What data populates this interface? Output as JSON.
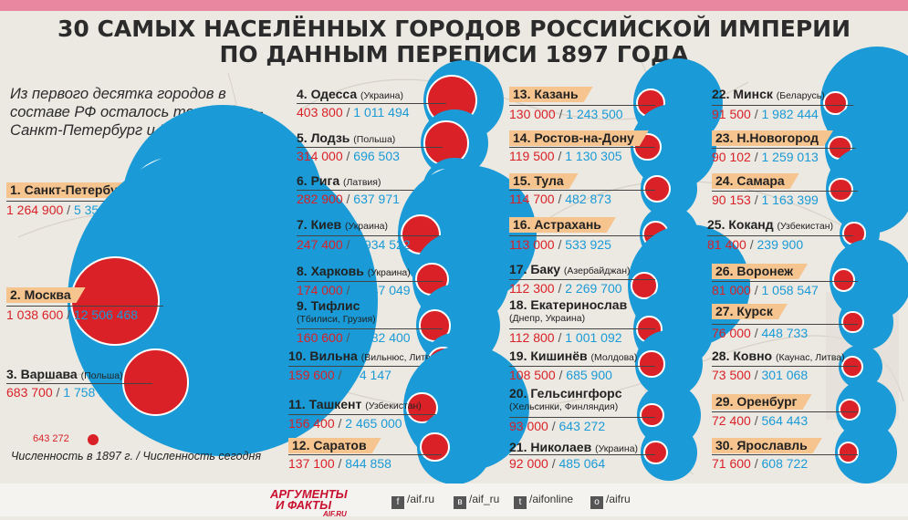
{
  "title_line1": "30 САМЫХ НАСЕЛЁННЫХ ГОРОДОВ РОССИЙСКОЙ ИМПЕРИИ",
  "title_line2": "ПО ДАННЫМ ПЕРЕПИСИ 1897 ГОДА",
  "intro": "Из первого десятка городов в составе РФ осталось только два - Санкт-Петербург и Москва.",
  "colors": {
    "accent_1897": "#d92127",
    "accent_now": "#1a9ad6",
    "label_highlight": "#f6c48f",
    "top_bar": "#e8879f"
  },
  "cities": [
    {
      "rank": "1.",
      "name": "Санкт-Петербург",
      "sub": "",
      "p1897": "1 264 900",
      "pnow": "5 351 935",
      "v1897": 1264900,
      "vnow": 5351935,
      "highlight": true
    },
    {
      "rank": "2.",
      "name": "Москва",
      "sub": "",
      "p1897": "1 038 600",
      "pnow": "12 506 468",
      "v1897": 1038600,
      "vnow": 12506468,
      "highlight": true
    },
    {
      "rank": "3.",
      "name": "Варшава",
      "sub": "(Польша)",
      "p1897": "683 700",
      "pnow": "1 758 143",
      "v1897": 683700,
      "vnow": 1758143,
      "highlight": false
    },
    {
      "rank": "4.",
      "name": "Одесса",
      "sub": "(Украина)",
      "p1897": "403 800",
      "pnow": "1 011 494",
      "v1897": 403800,
      "vnow": 1011494,
      "highlight": false
    },
    {
      "rank": "5.",
      "name": "Лодзь",
      "sub": "(Польша)",
      "p1897": "314 000",
      "pnow": "696 503",
      "v1897": 314000,
      "vnow": 696503,
      "highlight": false
    },
    {
      "rank": "6.",
      "name": "Рига",
      "sub": "(Латвия)",
      "p1897": "282 900",
      "pnow": "637 971",
      "v1897": 282900,
      "vnow": 637971,
      "highlight": false
    },
    {
      "rank": "7.",
      "name": "Киев",
      "sub": "(Украина)",
      "p1897": "247 400",
      "pnow": "2 934 522",
      "v1897": 247400,
      "vnow": 2934522,
      "highlight": false
    },
    {
      "rank": "8.",
      "name": "Харковь",
      "sub": "(Украина)",
      "p1897": "174 000",
      "pnow": "1 447 049",
      "v1897": 174000,
      "vnow": 1447049,
      "highlight": false
    },
    {
      "rank": "9.",
      "name": "Тифлис",
      "sub": "",
      "sub2": "(Тбилиси, Грузия)",
      "p1897": "160 600",
      "pnow": "1 082 400",
      "v1897": 160600,
      "vnow": 1082400,
      "highlight": false
    },
    {
      "rank": "10.",
      "name": "Вильна",
      "sub": "(Вильнюс, Литва)",
      "p1897": "159 600",
      "pnow": "574 147",
      "v1897": 159600,
      "vnow": 574147,
      "highlight": false
    },
    {
      "rank": "11.",
      "name": "Ташкент",
      "sub": "(Узбекистан)",
      "p1897": "156 400",
      "pnow": "2 465 000",
      "v1897": 156400,
      "vnow": 2465000,
      "highlight": false
    },
    {
      "rank": "12.",
      "name": "Саратов",
      "sub": "",
      "p1897": "137 100",
      "pnow": "844 858",
      "v1897": 137100,
      "vnow": 844858,
      "highlight": true
    },
    {
      "rank": "13.",
      "name": "Казань",
      "sub": "",
      "p1897": "130 000",
      "pnow": "1 243 500",
      "v1897": 130000,
      "vnow": 1243500,
      "highlight": true
    },
    {
      "rank": "14.",
      "name": "Ростов-на-Дону",
      "sub": "",
      "p1897": "119 500",
      "pnow": "1 130 305",
      "v1897": 119500,
      "vnow": 1130305,
      "highlight": true
    },
    {
      "rank": "15.",
      "name": "Тула",
      "sub": "",
      "p1897": "114 700",
      "pnow": "482 873",
      "v1897": 114700,
      "vnow": 482873,
      "highlight": true
    },
    {
      "rank": "16.",
      "name": "Астрахань",
      "sub": "",
      "p1897": "113 000",
      "pnow": "533 925",
      "v1897": 113000,
      "vnow": 533925,
      "highlight": true
    },
    {
      "rank": "17.",
      "name": "Баку",
      "sub": "(Азербайджан)",
      "p1897": "112 300",
      "pnow": "2 269 700",
      "v1897": 112300,
      "vnow": 2269700,
      "highlight": false
    },
    {
      "rank": "18.",
      "name": "Екатеринослав",
      "sub": "",
      "sub2": "(Днепр, Украина)",
      "p1897": "112 800",
      "pnow": "1 001 092",
      "v1897": 112800,
      "vnow": 1001092,
      "highlight": false
    },
    {
      "rank": "19.",
      "name": "Кишинёв",
      "sub": "(Молдова)",
      "p1897": "108 500",
      "pnow": "685 900",
      "v1897": 108500,
      "vnow": 685900,
      "highlight": false
    },
    {
      "rank": "20.",
      "name": "Гельсингфорс",
      "sub": "",
      "sub2": "(Хельсинки, Финляндия)",
      "p1897": "93 000",
      "pnow": "643 272",
      "v1897": 93000,
      "vnow": 643272,
      "highlight": false
    },
    {
      "rank": "21.",
      "name": "Николаев",
      "sub": "(Украина)",
      "p1897": "92 000",
      "pnow": "485 064",
      "v1897": 92000,
      "vnow": 485064,
      "highlight": false
    },
    {
      "rank": "22.",
      "name": "Минск",
      "sub": "(Беларусь)",
      "p1897": "91 500",
      "pnow": "1 982 444",
      "v1897": 91500,
      "vnow": 1982444,
      "highlight": false
    },
    {
      "rank": "23.",
      "name": "Н.Новогород",
      "sub": "",
      "p1897": "90 102",
      "pnow": "1 259 013",
      "v1897": 90102,
      "vnow": 1259013,
      "highlight": true
    },
    {
      "rank": "24.",
      "name": "Самара",
      "sub": "",
      "p1897": "90 153",
      "pnow": "1 163 399",
      "v1897": 90153,
      "vnow": 1163399,
      "highlight": true
    },
    {
      "rank": "25.",
      "name": "Коканд",
      "sub": "(Узбекистан)",
      "p1897": "81 400",
      "pnow": "239 900",
      "v1897": 81400,
      "vnow": 239900,
      "highlight": false
    },
    {
      "rank": "26.",
      "name": "Воронеж",
      "sub": "",
      "p1897": "81 000",
      "pnow": "1 058 547",
      "v1897": 81000,
      "vnow": 1058547,
      "highlight": true
    },
    {
      "rank": "27.",
      "name": "Курск",
      "sub": "",
      "p1897": "76 000",
      "pnow": "448 733",
      "v1897": 76000,
      "vnow": 448733,
      "highlight": true
    },
    {
      "rank": "28.",
      "name": "Ковно",
      "sub": "(Каунас, Литва)",
      "p1897": "73 500",
      "pnow": "301 068",
      "v1897": 73500,
      "vnow": 301068,
      "highlight": false
    },
    {
      "rank": "29.",
      "name": "Оренбург",
      "sub": "",
      "p1897": "72 400",
      "pnow": "564 443",
      "v1897": 72400,
      "vnow": 564443,
      "highlight": true
    },
    {
      "rank": "30.",
      "name": "Ярославль",
      "sub": "",
      "p1897": "71 600",
      "pnow": "608 722",
      "v1897": 71600,
      "vnow": 608722,
      "highlight": true
    }
  ],
  "legend": {
    "sample_1897": "643 272",
    "sample_now": "643 272",
    "text": "Численность в 1897 г. / Численность сегодня"
  },
  "footer": {
    "logo_line1": "АРГУМЕНТЫ",
    "logo_line2": "И ФАКТЫ",
    "logo_site": "AIF.RU",
    "socials": [
      {
        "icon": "f",
        "label": "/aif.ru"
      },
      {
        "icon": "в",
        "label": "/aif_ru"
      },
      {
        "icon": "t",
        "label": "/aifonline"
      },
      {
        "icon": "о",
        "label": "/aifru"
      }
    ]
  }
}
